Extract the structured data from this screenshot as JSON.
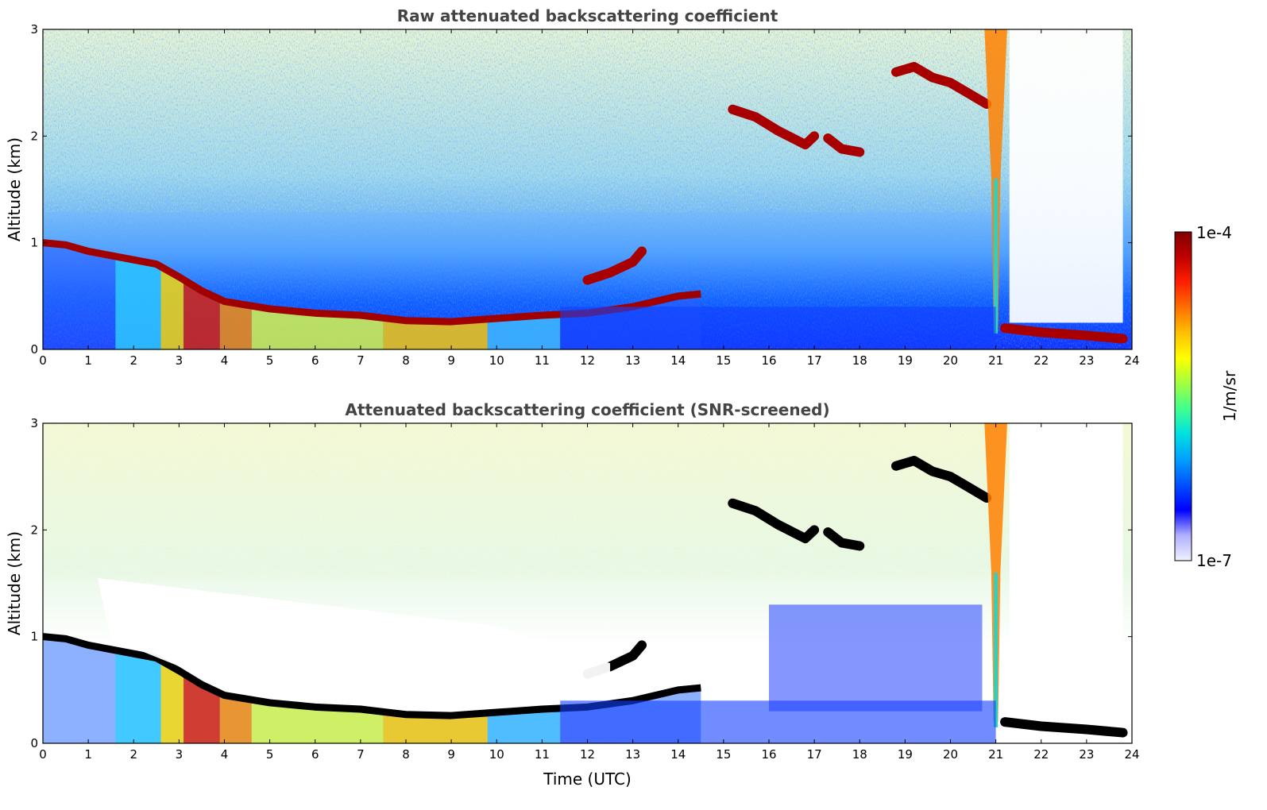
{
  "chart_data": [
    {
      "type": "heatmap",
      "title": "Raw attenuated backscattering coefficient",
      "xlabel": "",
      "ylabel": "Altitude (km)",
      "xlim": [
        0,
        24
      ],
      "ylim": [
        0,
        3
      ],
      "xticks": [
        "0",
        "1",
        "2",
        "3",
        "4",
        "5",
        "6",
        "7",
        "8",
        "9",
        "10",
        "11",
        "12",
        "13",
        "14",
        "15",
        "16",
        "17",
        "18",
        "19",
        "20",
        "21",
        "22",
        "23",
        "24"
      ],
      "yticks": [
        "0",
        "1",
        "2",
        "3"
      ],
      "boundary_layer_top_km": {
        "x": [
          0,
          0.5,
          1,
          1.5,
          2,
          2.5,
          3,
          3.5,
          4,
          5,
          6,
          7,
          8,
          9,
          10,
          11,
          12,
          13,
          14,
          14.5
        ],
        "y": [
          1.0,
          0.98,
          0.92,
          0.88,
          0.84,
          0.8,
          0.68,
          0.55,
          0.45,
          0.38,
          0.34,
          0.32,
          0.27,
          0.26,
          0.29,
          0.32,
          0.34,
          0.4,
          0.5,
          0.52
        ]
      },
      "cloud_layers_km": [
        {
          "x": [
            12.0,
            12.5,
            13.0,
            13.2
          ],
          "y": [
            0.65,
            0.72,
            0.82,
            0.92
          ]
        },
        {
          "x": [
            15.2,
            15.7,
            16.2,
            16.8,
            17.0
          ],
          "y": [
            2.25,
            2.18,
            2.05,
            1.92,
            2.0
          ]
        },
        {
          "x": [
            17.3,
            17.6,
            18.0
          ],
          "y": [
            1.98,
            1.88,
            1.85
          ]
        },
        {
          "x": [
            18.8,
            19.2,
            19.6,
            20.0,
            20.4,
            20.8
          ],
          "y": [
            2.6,
            2.65,
            2.55,
            2.5,
            2.4,
            2.3
          ]
        },
        {
          "x": [
            21.2,
            22.0,
            23.0,
            23.8
          ],
          "y": [
            0.2,
            0.16,
            0.13,
            0.1
          ]
        }
      ]
    },
    {
      "type": "heatmap",
      "title": "Attenuated backscattering coefficient (SNR-screened)",
      "xlabel": "Time (UTC)",
      "ylabel": "Altitude (km)",
      "xlim": [
        0,
        24
      ],
      "ylim": [
        0,
        3
      ],
      "xticks": [
        "0",
        "1",
        "2",
        "3",
        "4",
        "5",
        "6",
        "7",
        "8",
        "9",
        "10",
        "11",
        "12",
        "13",
        "14",
        "15",
        "16",
        "17",
        "18",
        "19",
        "20",
        "21",
        "22",
        "23",
        "24"
      ],
      "yticks": [
        "0",
        "1",
        "2",
        "3"
      ]
    }
  ],
  "colorbar": {
    "label": "1/m/sr",
    "max_label": "1e-4",
    "min_label": "1e-7",
    "colormap": [
      "#f0f0ff",
      "#b0b0ff",
      "#0000ff",
      "#0050ff",
      "#00a0ff",
      "#00e0e0",
      "#40ff90",
      "#a0ff40",
      "#ffff00",
      "#ffc000",
      "#ff7000",
      "#ff2000",
      "#c00000",
      "#800000"
    ]
  }
}
